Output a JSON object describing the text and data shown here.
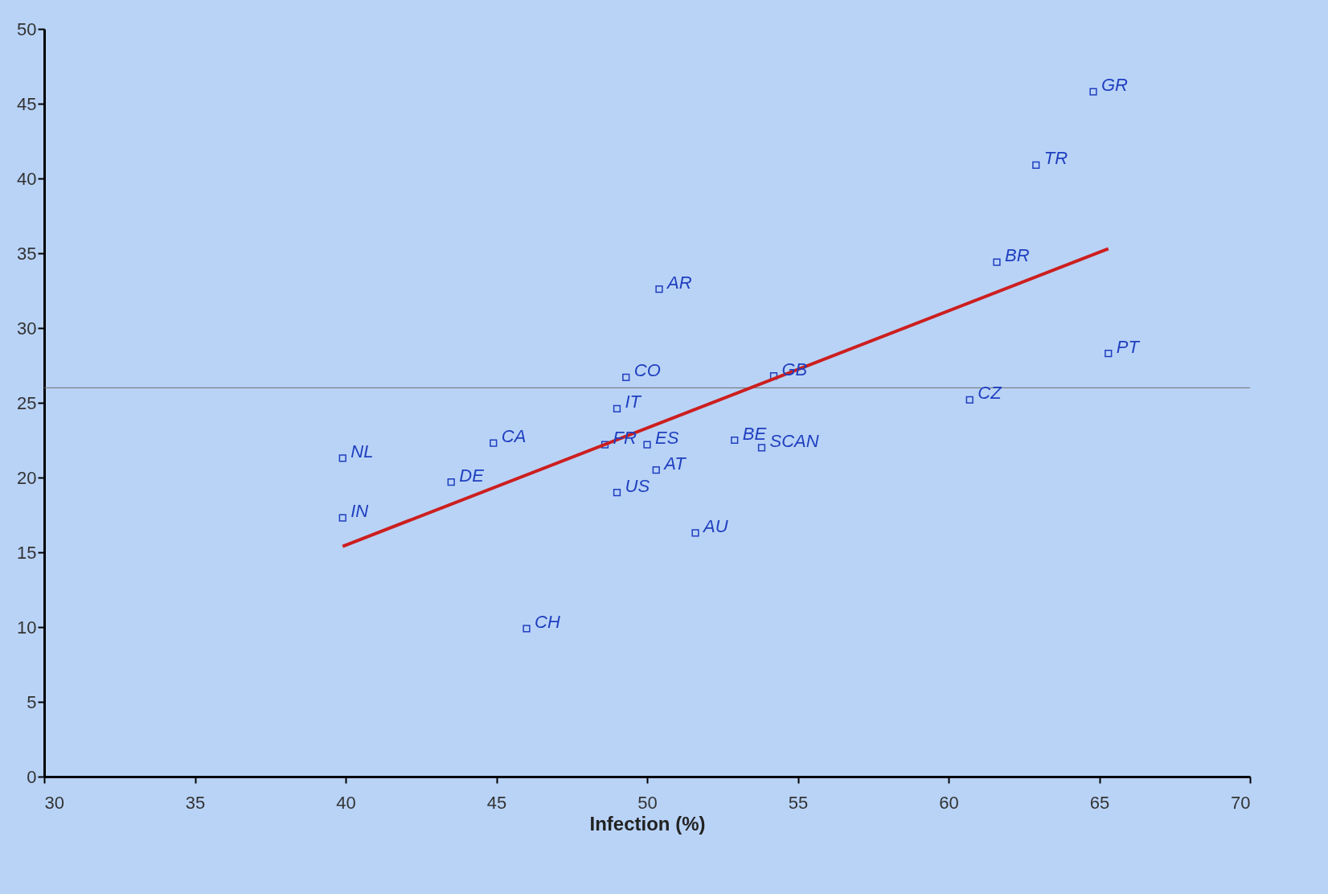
{
  "chart_data": {
    "type": "scatter",
    "xlabel": "Infection (%)",
    "xlim": [
      30,
      70
    ],
    "xticks": [
      30,
      35,
      40,
      45,
      50,
      55,
      60,
      65,
      70
    ],
    "ylim": [
      0,
      50
    ],
    "yticks": [
      0,
      5,
      10,
      15,
      20,
      25,
      30,
      35,
      40,
      45,
      50
    ],
    "grid": false,
    "marker": "square",
    "series": [
      {
        "name": "GR",
        "color": "#1f3fbf",
        "x": [
          64.8
        ],
        "values": [
          45.8
        ]
      },
      {
        "name": "TR",
        "color": "#1f3fbf",
        "x": [
          62.9
        ],
        "values": [
          40.9
        ]
      },
      {
        "name": "BR",
        "color": "#1f3fbf",
        "x": [
          61.6
        ],
        "values": [
          34.4
        ]
      },
      {
        "name": "PT",
        "color": "#1f3fbf",
        "x": [
          65.3
        ],
        "values": [
          28.3
        ]
      },
      {
        "name": "CZ",
        "color": "#1f3fbf",
        "x": [
          60.7
        ],
        "values": [
          25.2
        ]
      },
      {
        "name": "GB",
        "color": "#1f3fbf",
        "x": [
          54.2
        ],
        "values": [
          26.8
        ]
      },
      {
        "name": "SCAN",
        "color": "#1f3fbf",
        "x": [
          53.8
        ],
        "values": [
          22.0
        ]
      },
      {
        "name": "BE",
        "color": "#1f3fbf",
        "x": [
          52.9
        ],
        "values": [
          22.5
        ]
      },
      {
        "name": "AR",
        "color": "#1f3fbf",
        "x": [
          50.4
        ],
        "values": [
          32.6
        ]
      },
      {
        "name": "CO",
        "color": "#1f3fbf",
        "x": [
          49.3
        ],
        "values": [
          26.7
        ]
      },
      {
        "name": "IT",
        "color": "#1f3fbf",
        "x": [
          49.0
        ],
        "values": [
          24.6
        ]
      },
      {
        "name": "ES",
        "color": "#1f3fbf",
        "x": [
          50.0
        ],
        "values": [
          22.2
        ]
      },
      {
        "name": "AT",
        "color": "#1f3fbf",
        "x": [
          50.3
        ],
        "values": [
          20.5
        ]
      },
      {
        "name": "US",
        "color": "#1f3fbf",
        "x": [
          49.0
        ],
        "values": [
          19.0
        ]
      },
      {
        "name": "AU",
        "color": "#1f3fbf",
        "x": [
          51.6
        ],
        "values": [
          16.3
        ]
      },
      {
        "name": "FR",
        "color": "#1f3fbf",
        "x": [
          48.6
        ],
        "values": [
          22.2
        ]
      },
      {
        "name": "CA",
        "color": "#1f3fbf",
        "x": [
          44.9
        ],
        "values": [
          22.3
        ]
      },
      {
        "name": "DE",
        "color": "#1f3fbf",
        "x": [
          43.5
        ],
        "values": [
          19.7
        ]
      },
      {
        "name": "NL",
        "color": "#1f3fbf",
        "x": [
          39.9
        ],
        "values": [
          21.3
        ]
      },
      {
        "name": "IN",
        "color": "#1f3fbf",
        "x": [
          39.9
        ],
        "values": [
          17.3
        ]
      },
      {
        "name": "CH",
        "color": "#1f3fbf",
        "x": [
          46.0
        ],
        "values": [
          9.9
        ]
      },
      {
        "type": "line",
        "marker": "none",
        "color": "#cc1f1f",
        "x": [
          39.9,
          65.3
        ],
        "values": [
          15.4,
          35.3
        ]
      }
    ],
    "ref_lines": [
      {
        "axis": "y",
        "value": 26,
        "color": "#707070"
      }
    ]
  }
}
